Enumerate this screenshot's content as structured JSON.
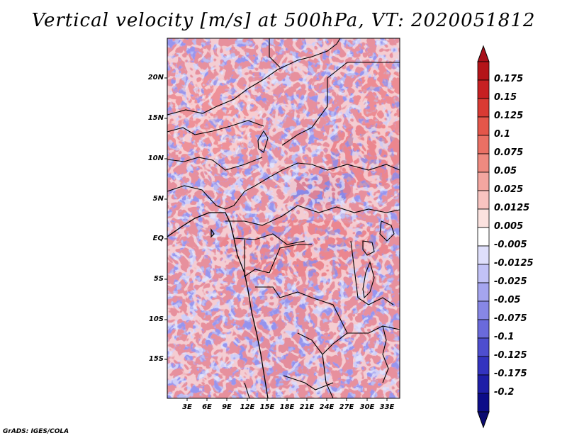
{
  "title": "Vertical velocity [m/s] at 500hPa, VT: 2020051812",
  "credit": "GrADS: IGES/COLA",
  "map": {
    "lat_labels": [
      "20N",
      "15N",
      "10N",
      "5N",
      "EQ",
      "5S",
      "10S",
      "15S"
    ],
    "lon_labels": [
      "3E",
      "6E",
      "9E",
      "12E",
      "15E",
      "18E",
      "21E",
      "24E",
      "27E",
      "30E",
      "33E"
    ]
  },
  "colorbar": {
    "labels": [
      "0.175",
      "0.15",
      "0.125",
      "0.1",
      "0.075",
      "0.05",
      "0.025",
      "0.0125",
      "0.005",
      "-0.005",
      "-0.0125",
      "-0.025",
      "-0.05",
      "-0.075",
      "-0.1",
      "-0.125",
      "-0.175",
      "-0.2"
    ],
    "colors": [
      "#b41419",
      "#c72022",
      "#d93a33",
      "#e4564a",
      "#ea7064",
      "#ef8a80",
      "#f4a6a0",
      "#f8c4c0",
      "#fbe2df",
      "#ffffff",
      "#dfdffb",
      "#c2c2f6",
      "#a5a5ef",
      "#8787e6",
      "#6a6adb",
      "#4e4ecf",
      "#3333bf",
      "#1e1ea7",
      "#0c0c88"
    ],
    "top_triangle_color": "#a8101a",
    "bottom_triangle_color": "#0a0a70"
  }
}
